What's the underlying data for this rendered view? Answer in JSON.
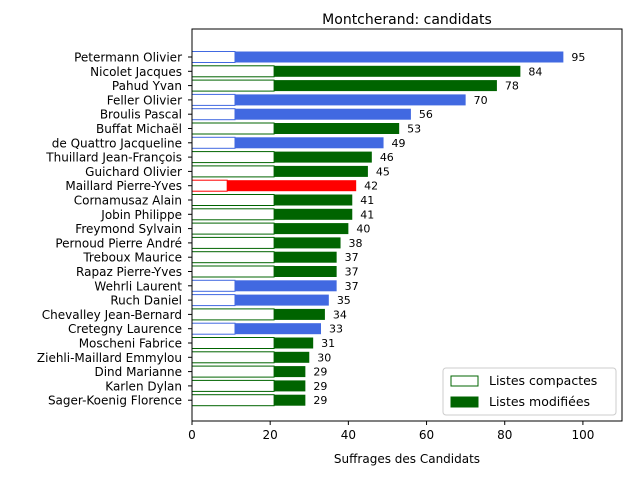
{
  "chart_data": {
    "type": "bar",
    "orientation": "horizontal",
    "title": "Montcherand: candidats",
    "xlabel": "Suffrages des Candidats",
    "ylabel": "",
    "xlim": [
      0,
      110
    ],
    "xticks": [
      0,
      20,
      40,
      60,
      80,
      100
    ],
    "grid": false,
    "legend_position": "lower-right",
    "legend": [
      {
        "label": "Listes compactes",
        "style": "outline"
      },
      {
        "label": "Listes modifiées",
        "style": "filled"
      }
    ],
    "colors": {
      "blue": "#4169E1",
      "green": "#006400",
      "red": "#FF0000"
    },
    "candidates": [
      {
        "name": "Petermann Olivier",
        "total": 95,
        "compact": 11,
        "color": "#4169E1"
      },
      {
        "name": "Nicolet Jacques",
        "total": 84,
        "compact": 21,
        "color": "#006400"
      },
      {
        "name": "Pahud Yvan",
        "total": 78,
        "compact": 21,
        "color": "#006400"
      },
      {
        "name": "Feller Olivier",
        "total": 70,
        "compact": 11,
        "color": "#4169E1"
      },
      {
        "name": "Broulis Pascal",
        "total": 56,
        "compact": 11,
        "color": "#4169E1"
      },
      {
        "name": "Buffat Michaël",
        "total": 53,
        "compact": 21,
        "color": "#006400"
      },
      {
        "name": "de Quattro Jacqueline",
        "total": 49,
        "compact": 11,
        "color": "#4169E1"
      },
      {
        "name": "Thuillard Jean-François",
        "total": 46,
        "compact": 21,
        "color": "#006400"
      },
      {
        "name": "Guichard Olivier",
        "total": 45,
        "compact": 21,
        "color": "#006400"
      },
      {
        "name": "Maillard Pierre-Yves",
        "total": 42,
        "compact": 9,
        "color": "#FF0000"
      },
      {
        "name": "Cornamusaz Alain",
        "total": 41,
        "compact": 21,
        "color": "#006400"
      },
      {
        "name": "Jobin Philippe",
        "total": 41,
        "compact": 21,
        "color": "#006400"
      },
      {
        "name": "Freymond Sylvain",
        "total": 40,
        "compact": 21,
        "color": "#006400"
      },
      {
        "name": "Pernoud Pierre André",
        "total": 38,
        "compact": 21,
        "color": "#006400"
      },
      {
        "name": "Treboux Maurice",
        "total": 37,
        "compact": 21,
        "color": "#006400"
      },
      {
        "name": "Rapaz Pierre-Yves",
        "total": 37,
        "compact": 21,
        "color": "#006400"
      },
      {
        "name": "Wehrli Laurent",
        "total": 37,
        "compact": 11,
        "color": "#4169E1"
      },
      {
        "name": "Ruch Daniel",
        "total": 35,
        "compact": 11,
        "color": "#4169E1"
      },
      {
        "name": "Chevalley Jean-Bernard",
        "total": 34,
        "compact": 21,
        "color": "#006400"
      },
      {
        "name": "Cretegny Laurence",
        "total": 33,
        "compact": 11,
        "color": "#4169E1"
      },
      {
        "name": "Moscheni Fabrice",
        "total": 31,
        "compact": 21,
        "color": "#006400"
      },
      {
        "name": "Ziehli-Maillard Emmylou",
        "total": 30,
        "compact": 21,
        "color": "#006400"
      },
      {
        "name": "Dind Marianne",
        "total": 29,
        "compact": 21,
        "color": "#006400"
      },
      {
        "name": "Karlen Dylan",
        "total": 29,
        "compact": 21,
        "color": "#006400"
      },
      {
        "name": "Sager-Koenig Florence",
        "total": 29,
        "compact": 21,
        "color": "#006400"
      }
    ]
  }
}
